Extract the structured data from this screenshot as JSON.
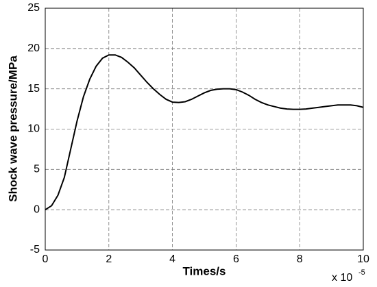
{
  "chart_data": {
    "type": "line",
    "x_label": "Times/s",
    "y_label": "Shock wave pressure/MPa",
    "x_scale_text": "x 10",
    "x_scale_exponent": "-5",
    "x": [
      0,
      0.2,
      0.4,
      0.6,
      0.8,
      1.0,
      1.2,
      1.4,
      1.6,
      1.8,
      2.0,
      2.2,
      2.4,
      2.6,
      2.8,
      3.0,
      3.2,
      3.4,
      3.6,
      3.8,
      4.0,
      4.2,
      4.4,
      4.6,
      4.8,
      5.0,
      5.2,
      5.4,
      5.6,
      5.8,
      6.0,
      6.2,
      6.4,
      6.6,
      6.8,
      7.0,
      7.2,
      7.4,
      7.6,
      7.8,
      8.0,
      8.2,
      8.4,
      8.6,
      8.8,
      9.0,
      9.2,
      9.4,
      9.6,
      9.8,
      10
    ],
    "series": [
      {
        "color": "#000000",
        "values": [
          0,
          0.5,
          1.8,
          4,
          7.5,
          11,
          14,
          16.2,
          17.8,
          18.8,
          19.2,
          19.2,
          18.9,
          18.3,
          17.6,
          16.7,
          15.8,
          15.0,
          14.3,
          13.7,
          13.35,
          13.3,
          13.4,
          13.7,
          14.1,
          14.5,
          14.8,
          14.95,
          15.0,
          15.0,
          14.9,
          14.6,
          14.2,
          13.7,
          13.3,
          13.0,
          12.8,
          12.6,
          12.5,
          12.45,
          12.45,
          12.5,
          12.6,
          12.7,
          12.8,
          12.9,
          13.0,
          13.0,
          13.0,
          12.9,
          12.7
        ]
      }
    ],
    "xlim": [
      0,
      10
    ],
    "xticks": [
      0,
      2,
      4,
      6,
      8,
      10
    ],
    "ylim": [
      -5,
      25
    ],
    "yticks": [
      -5,
      0,
      5,
      10,
      15,
      20,
      25
    ],
    "grid": true
  }
}
